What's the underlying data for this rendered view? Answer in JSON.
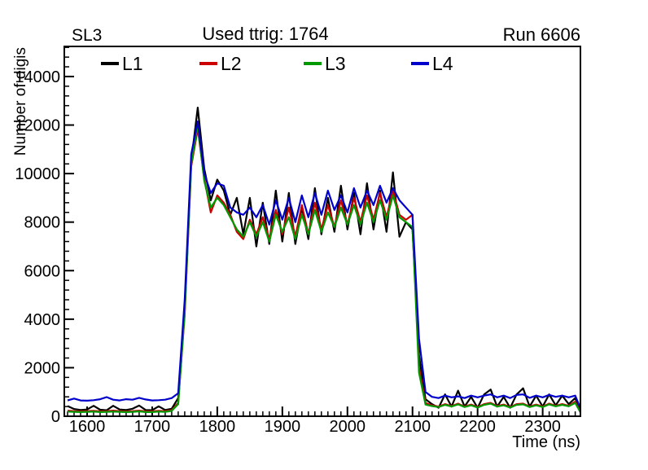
{
  "header": {
    "left": "SL3",
    "center": "Used ttrig: 1764",
    "right": "Run 6606"
  },
  "legend": {
    "entries": [
      {
        "label": "L1",
        "color": "#000000"
      },
      {
        "label": "L2",
        "color": "#cc0000"
      },
      {
        "label": "L3",
        "color": "#009900"
      },
      {
        "label": "L4",
        "color": "#0000cc"
      }
    ]
  },
  "chart_data": {
    "type": "line",
    "title": "Used ttrig: 1764",
    "subtitle_left": "SL3",
    "subtitle_right": "Run 6606",
    "xlabel": "Time (ns)",
    "ylabel": "Number of digis",
    "xlim": [
      1565,
      2358
    ],
    "ylim": [
      0,
      15240
    ],
    "grid": false,
    "legend_position": "top-inside",
    "x_major_ticks": [
      1600,
      1700,
      1800,
      1900,
      2000,
      2100,
      2200,
      2300
    ],
    "y_major_ticks": [
      0,
      2000,
      4000,
      6000,
      8000,
      10000,
      12000,
      14000
    ],
    "x_minor_step": 10,
    "y_minor_step": 400,
    "x": [
      1570,
      1580,
      1590,
      1600,
      1610,
      1620,
      1630,
      1640,
      1650,
      1660,
      1670,
      1680,
      1690,
      1700,
      1710,
      1720,
      1730,
      1740,
      1750,
      1760,
      1770,
      1780,
      1790,
      1800,
      1810,
      1820,
      1830,
      1840,
      1850,
      1860,
      1870,
      1880,
      1890,
      1900,
      1910,
      1920,
      1930,
      1940,
      1950,
      1960,
      1970,
      1980,
      1990,
      2000,
      2010,
      2020,
      2030,
      2040,
      2050,
      2060,
      2070,
      2080,
      2090,
      2100,
      2110,
      2120,
      2130,
      2140,
      2150,
      2160,
      2170,
      2180,
      2190,
      2200,
      2210,
      2220,
      2230,
      2240,
      2250,
      2260,
      2270,
      2280,
      2290,
      2300,
      2310,
      2320,
      2330,
      2340,
      2350,
      2360
    ],
    "series": [
      {
        "name": "L1",
        "color": "#000000",
        "values": [
          420,
          300,
          260,
          280,
          430,
          270,
          250,
          430,
          280,
          260,
          310,
          440,
          260,
          250,
          410,
          260,
          310,
          750,
          4500,
          10500,
          12720,
          10200,
          8900,
          9750,
          9300,
          8300,
          9000,
          7500,
          9000,
          7000,
          8800,
          7100,
          9300,
          7200,
          9200,
          7100,
          8600,
          7300,
          9400,
          7500,
          9000,
          7600,
          9500,
          7700,
          9200,
          7500,
          9600,
          7700,
          9300,
          7600,
          10050,
          7400,
          8000,
          7700,
          2500,
          700,
          500,
          350,
          900,
          400,
          1050,
          400,
          800,
          350,
          900,
          1100,
          400,
          800,
          350,
          900,
          1150,
          400,
          850,
          400,
          900,
          450,
          850,
          500,
          750,
          100
        ]
      },
      {
        "name": "L2",
        "color": "#cc0000",
        "values": [
          230,
          210,
          200,
          210,
          220,
          200,
          210,
          230,
          210,
          200,
          210,
          230,
          200,
          200,
          220,
          210,
          250,
          550,
          4200,
          10300,
          11850,
          9800,
          8400,
          9100,
          8800,
          8300,
          7600,
          7300,
          8100,
          7500,
          8200,
          7300,
          8500,
          7500,
          8600,
          7400,
          8700,
          7500,
          8800,
          7700,
          8700,
          7800,
          8900,
          7900,
          9000,
          8000,
          9100,
          8100,
          9200,
          8200,
          9300,
          8300,
          8100,
          8300,
          2000,
          550,
          450,
          400,
          500,
          420,
          520,
          400,
          480,
          380,
          500,
          550,
          420,
          480,
          380,
          500,
          520,
          400,
          480,
          400,
          520,
          430,
          500,
          430,
          600,
          80
        ]
      },
      {
        "name": "L3",
        "color": "#009900",
        "values": [
          190,
          180,
          170,
          180,
          190,
          170,
          180,
          190,
          180,
          170,
          180,
          200,
          170,
          170,
          190,
          180,
          220,
          500,
          4300,
          10400,
          12000,
          9700,
          8600,
          9000,
          8700,
          8200,
          7700,
          7400,
          8000,
          7400,
          8000,
          7200,
          8300,
          7600,
          8200,
          7300,
          8300,
          7500,
          8500,
          7600,
          8400,
          7800,
          8600,
          7900,
          8700,
          7900,
          8800,
          8000,
          8900,
          8100,
          9100,
          8200,
          8000,
          7800,
          1800,
          480,
          420,
          380,
          470,
          400,
          490,
          380,
          450,
          360,
          470,
          520,
          400,
          450,
          360,
          470,
          490,
          380,
          450,
          380,
          490,
          410,
          470,
          410,
          550,
          60
        ]
      },
      {
        "name": "L4",
        "color": "#0000cc",
        "values": [
          650,
          730,
          650,
          640,
          660,
          700,
          790,
          680,
          650,
          700,
          680,
          760,
          690,
          650,
          660,
          680,
          750,
          950,
          4800,
          10800,
          12150,
          10000,
          9200,
          9600,
          9500,
          8600,
          8400,
          8300,
          8600,
          8200,
          8700,
          7900,
          8900,
          8100,
          9000,
          8000,
          9100,
          8200,
          9200,
          8300,
          9300,
          8500,
          9100,
          8400,
          9400,
          8600,
          9300,
          8700,
          9500,
          8800,
          9400,
          8900,
          8600,
          8300,
          3200,
          1000,
          800,
          750,
          850,
          780,
          820,
          750,
          850,
          780,
          850,
          900,
          780,
          850,
          750,
          880,
          900,
          760,
          850,
          780,
          880,
          800,
          850,
          780,
          850,
          200
        ]
      }
    ]
  }
}
